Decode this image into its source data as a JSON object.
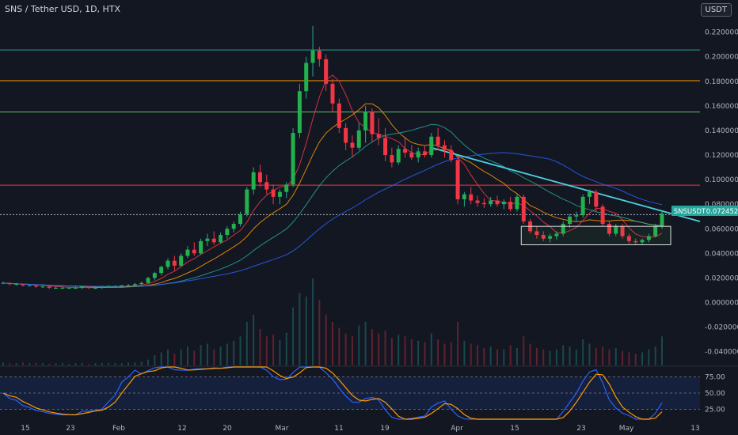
{
  "header": {
    "title": "SNS / Tether USD, 1D, HTX",
    "currency": "USDT"
  },
  "price_tag": {
    "label": "SNSUSDT",
    "value": "0.072452"
  },
  "chart_data": {
    "type": "candlestick",
    "y_ticks": [
      "0.220000",
      "0.200000",
      "0.180000",
      "0.160000",
      "0.140000",
      "0.120000",
      "0.100000",
      "0.080000",
      "0.060000",
      "0.040000",
      "0.020000",
      "0.000000",
      "-0.020000",
      "-0.040000"
    ],
    "ylim": [
      -0.046,
      0.232
    ],
    "x_ticks": [
      "15",
      "23",
      "Feb",
      "12",
      "20",
      "Mar",
      "11",
      "19",
      "Apr",
      "15",
      "23",
      "May",
      "13"
    ],
    "horizontal_levels": [
      {
        "value": 0.2055,
        "color": "#26a69a"
      },
      {
        "value": 0.1805,
        "color": "#ff9800"
      },
      {
        "value": 0.155,
        "color": "#66bb6a"
      },
      {
        "value": 0.0955,
        "color": "#f23645"
      },
      {
        "value": 0.0715,
        "color": "#b2b5be"
      }
    ],
    "candles": [
      [
        0.016,
        0.017,
        0.015,
        0.016
      ],
      [
        0.016,
        0.016,
        0.014,
        0.015
      ],
      [
        0.015,
        0.016,
        0.014,
        0.015
      ],
      [
        0.015,
        0.015,
        0.013,
        0.014
      ],
      [
        0.014,
        0.015,
        0.013,
        0.014
      ],
      [
        0.014,
        0.014,
        0.012,
        0.013
      ],
      [
        0.013,
        0.014,
        0.012,
        0.013
      ],
      [
        0.013,
        0.013,
        0.011,
        0.012
      ],
      [
        0.012,
        0.013,
        0.011,
        0.012
      ],
      [
        0.012,
        0.013,
        0.011,
        0.012
      ],
      [
        0.012,
        0.012,
        0.011,
        0.012
      ],
      [
        0.012,
        0.013,
        0.011,
        0.012
      ],
      [
        0.012,
        0.013,
        0.011,
        0.013
      ],
      [
        0.013,
        0.013,
        0.011,
        0.012
      ],
      [
        0.012,
        0.013,
        0.011,
        0.012
      ],
      [
        0.012,
        0.013,
        0.011,
        0.013
      ],
      [
        0.013,
        0.014,
        0.012,
        0.013
      ],
      [
        0.013,
        0.014,
        0.012,
        0.013
      ],
      [
        0.013,
        0.014,
        0.012,
        0.014
      ],
      [
        0.014,
        0.015,
        0.013,
        0.014
      ],
      [
        0.014,
        0.016,
        0.013,
        0.015
      ],
      [
        0.015,
        0.017,
        0.014,
        0.016
      ],
      [
        0.016,
        0.021,
        0.015,
        0.02
      ],
      [
        0.02,
        0.025,
        0.018,
        0.024
      ],
      [
        0.024,
        0.03,
        0.022,
        0.029
      ],
      [
        0.029,
        0.036,
        0.027,
        0.034
      ],
      [
        0.034,
        0.038,
        0.026,
        0.03
      ],
      [
        0.03,
        0.04,
        0.029,
        0.038
      ],
      [
        0.038,
        0.046,
        0.036,
        0.043
      ],
      [
        0.043,
        0.049,
        0.038,
        0.04
      ],
      [
        0.04,
        0.052,
        0.039,
        0.05
      ],
      [
        0.05,
        0.056,
        0.046,
        0.052
      ],
      [
        0.052,
        0.058,
        0.047,
        0.049
      ],
      [
        0.049,
        0.057,
        0.048,
        0.055
      ],
      [
        0.055,
        0.062,
        0.052,
        0.06
      ],
      [
        0.06,
        0.066,
        0.057,
        0.064
      ],
      [
        0.064,
        0.074,
        0.062,
        0.072
      ],
      [
        0.072,
        0.094,
        0.07,
        0.092
      ],
      [
        0.092,
        0.11,
        0.088,
        0.106
      ],
      [
        0.106,
        0.112,
        0.094,
        0.098
      ],
      [
        0.098,
        0.104,
        0.088,
        0.092
      ],
      [
        0.092,
        0.096,
        0.08,
        0.086
      ],
      [
        0.086,
        0.092,
        0.08,
        0.09
      ],
      [
        0.09,
        0.098,
        0.085,
        0.096
      ],
      [
        0.096,
        0.142,
        0.094,
        0.138
      ],
      [
        0.138,
        0.178,
        0.134,
        0.172
      ],
      [
        0.172,
        0.2,
        0.166,
        0.195
      ],
      [
        0.195,
        0.225,
        0.184,
        0.205
      ],
      [
        0.205,
        0.208,
        0.192,
        0.198
      ],
      [
        0.198,
        0.202,
        0.172,
        0.178
      ],
      [
        0.178,
        0.182,
        0.155,
        0.162
      ],
      [
        0.162,
        0.166,
        0.138,
        0.142
      ],
      [
        0.142,
        0.146,
        0.124,
        0.13
      ],
      [
        0.13,
        0.136,
        0.118,
        0.126
      ],
      [
        0.126,
        0.146,
        0.124,
        0.14
      ],
      [
        0.14,
        0.16,
        0.13,
        0.155
      ],
      [
        0.155,
        0.158,
        0.13,
        0.137
      ],
      [
        0.137,
        0.15,
        0.128,
        0.134
      ],
      [
        0.134,
        0.142,
        0.115,
        0.12
      ],
      [
        0.12,
        0.126,
        0.11,
        0.114
      ],
      [
        0.114,
        0.128,
        0.112,
        0.125
      ],
      [
        0.125,
        0.135,
        0.118,
        0.122
      ],
      [
        0.122,
        0.128,
        0.116,
        0.118
      ],
      [
        0.118,
        0.126,
        0.114,
        0.123
      ],
      [
        0.123,
        0.128,
        0.118,
        0.12
      ],
      [
        0.12,
        0.138,
        0.118,
        0.135
      ],
      [
        0.135,
        0.142,
        0.124,
        0.128
      ],
      [
        0.128,
        0.132,
        0.118,
        0.124
      ],
      [
        0.124,
        0.128,
        0.114,
        0.116
      ],
      [
        0.116,
        0.118,
        0.08,
        0.084
      ],
      [
        0.084,
        0.09,
        0.078,
        0.088
      ],
      [
        0.088,
        0.094,
        0.08,
        0.083
      ],
      [
        0.083,
        0.087,
        0.078,
        0.081
      ],
      [
        0.081,
        0.085,
        0.077,
        0.08
      ],
      [
        0.08,
        0.086,
        0.078,
        0.083
      ],
      [
        0.083,
        0.087,
        0.078,
        0.08
      ],
      [
        0.08,
        0.084,
        0.076,
        0.082
      ],
      [
        0.082,
        0.086,
        0.074,
        0.076
      ],
      [
        0.076,
        0.088,
        0.074,
        0.086
      ],
      [
        0.086,
        0.088,
        0.064,
        0.066
      ],
      [
        0.066,
        0.068,
        0.056,
        0.058
      ],
      [
        0.058,
        0.062,
        0.052,
        0.055
      ],
      [
        0.055,
        0.058,
        0.05,
        0.052
      ],
      [
        0.052,
        0.056,
        0.049,
        0.054
      ],
      [
        0.054,
        0.058,
        0.051,
        0.056
      ],
      [
        0.056,
        0.066,
        0.054,
        0.064
      ],
      [
        0.064,
        0.072,
        0.061,
        0.07
      ],
      [
        0.07,
        0.074,
        0.066,
        0.071
      ],
      [
        0.071,
        0.088,
        0.069,
        0.086
      ],
      [
        0.086,
        0.092,
        0.08,
        0.09
      ],
      [
        0.09,
        0.092,
        0.074,
        0.078
      ],
      [
        0.078,
        0.08,
        0.062,
        0.064
      ],
      [
        0.064,
        0.066,
        0.054,
        0.056
      ],
      [
        0.056,
        0.064,
        0.054,
        0.062
      ],
      [
        0.062,
        0.064,
        0.052,
        0.054
      ],
      [
        0.054,
        0.056,
        0.048,
        0.05
      ],
      [
        0.05,
        0.052,
        0.047,
        0.049
      ],
      [
        0.049,
        0.052,
        0.047,
        0.051
      ],
      [
        0.051,
        0.056,
        0.049,
        0.054
      ],
      [
        0.054,
        0.064,
        0.053,
        0.062
      ],
      [
        0.062,
        0.074,
        0.06,
        0.0725
      ]
    ],
    "volumes": [
      4,
      3,
      3,
      4,
      3,
      3,
      3,
      2,
      3,
      3,
      2,
      3,
      3,
      2,
      3,
      3,
      3,
      3,
      3,
      4,
      4,
      5,
      8,
      14,
      18,
      22,
      16,
      22,
      26,
      20,
      28,
      30,
      22,
      26,
      30,
      34,
      40,
      60,
      70,
      50,
      40,
      42,
      35,
      45,
      80,
      100,
      95,
      120,
      90,
      70,
      60,
      52,
      44,
      40,
      55,
      60,
      50,
      44,
      48,
      38,
      42,
      40,
      36,
      34,
      32,
      44,
      36,
      30,
      32,
      60,
      34,
      30,
      28,
      24,
      26,
      22,
      22,
      28,
      24,
      40,
      30,
      24,
      22,
      20,
      22,
      28,
      26,
      22,
      36,
      30,
      24,
      26,
      22,
      24,
      20,
      18,
      16,
      18,
      22,
      26,
      40
    ],
    "indicator": {
      "type": "stochastic",
      "levels": [
        75.0,
        50.0,
        25.0
      ],
      "ylim": [
        10,
        90
      ]
    }
  }
}
